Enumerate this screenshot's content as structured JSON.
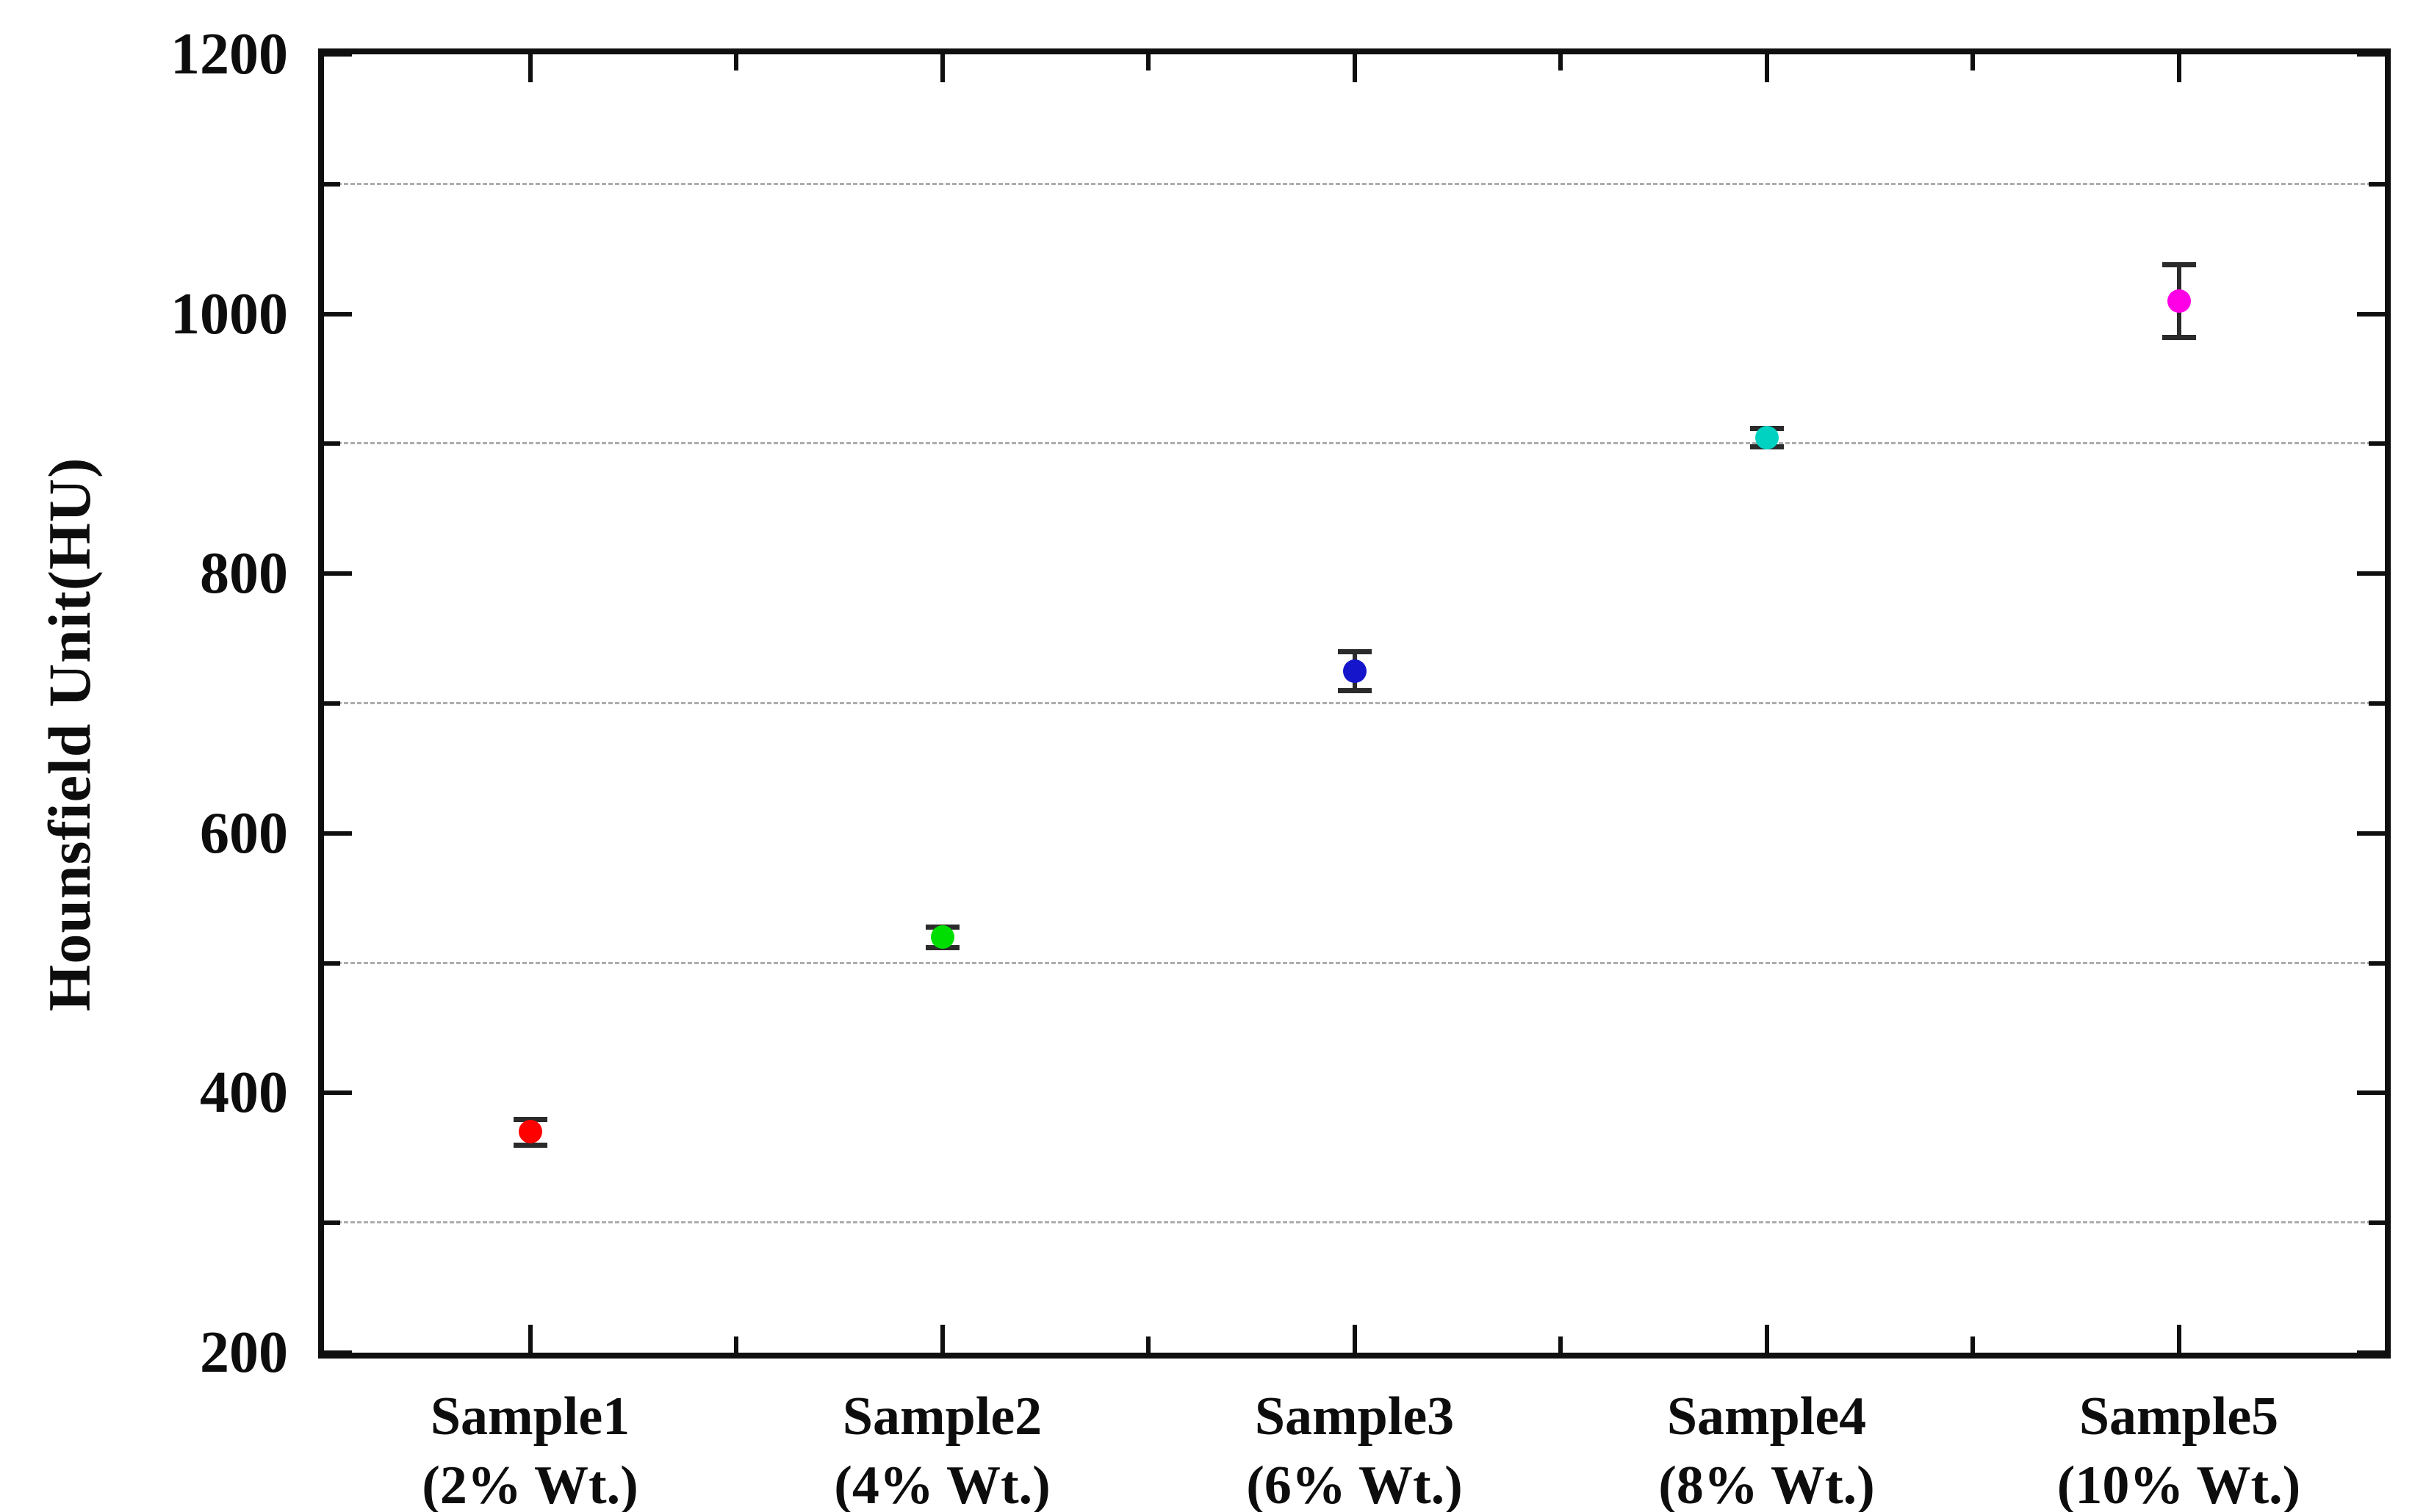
{
  "figure": {
    "background": "#ffffff",
    "frame_color": "#0f0f0f"
  },
  "chart_data": {
    "type": "scatter",
    "title": "",
    "xlabel": "",
    "ylabel": "Hounsfield Unit(HU)",
    "ylim": [
      200,
      1200
    ],
    "y_major_ticks": [
      1200,
      1000,
      800,
      600,
      400,
      200
    ],
    "y_minor_ticks": [
      1100,
      900,
      700,
      500,
      300
    ],
    "grid": {
      "orientation": "horizontal",
      "style": "dashed",
      "at_values": [
        300,
        500,
        700,
        900,
        1100
      ],
      "color": "#adadad"
    },
    "legend": "none",
    "marker_shape": "circle",
    "error_bar_color": "#2b2b2b",
    "categories": [
      {
        "label": "Sample1",
        "sublabel": "(2% Wt.)"
      },
      {
        "label": "Sample2",
        "sublabel": "(4% Wt.)"
      },
      {
        "label": "Sample3",
        "sublabel": "(6% Wt.)"
      },
      {
        "label": "Sample4",
        "sublabel": "(8% Wt.)"
      },
      {
        "label": "Sample5",
        "sublabel": "(10% Wt.)"
      }
    ],
    "series": [
      {
        "name": "Sample1 (2% Wt.)",
        "value": 370,
        "error": 10,
        "color": "#ff0000"
      },
      {
        "name": "Sample2 (4% Wt.)",
        "value": 520,
        "error": 8,
        "color": "#00dd00"
      },
      {
        "name": "Sample3 (6% Wt.)",
        "value": 725,
        "error": 15,
        "color": "#1515cc"
      },
      {
        "name": "Sample4 (8% Wt.)",
        "value": 905,
        "error": 7,
        "color": "#00d2c2"
      },
      {
        "name": "Sample5 (10% Wt.)",
        "value": 1010,
        "error": 28,
        "color": "#ff00e6"
      }
    ]
  }
}
